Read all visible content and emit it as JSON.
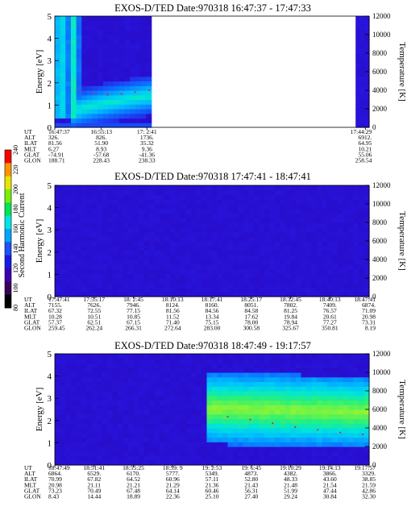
{
  "colorbar": {
    "label": "Second Harmonic Current",
    "ticks": [
      "80",
      "100",
      "120",
      "140",
      "160",
      "180",
      "200",
      "220",
      "240"
    ],
    "colors": [
      "#000000",
      "#3b005a",
      "#3c00b4",
      "#1a1ae6",
      "#1e50ff",
      "#00a5ff",
      "#00e6e6",
      "#00e650",
      "#78f000",
      "#e6e600",
      "#ff9600",
      "#ff0000"
    ]
  },
  "chart_data": [
    {
      "type": "heatmap",
      "title": "EXOS-D/TED   Date:970318   16:47:37 - 17:47:33",
      "ylabel": "Energy [eV]",
      "y2label": "Temperature [K]",
      "ylim": [
        0,
        5
      ],
      "yticks": [
        "0",
        "1",
        "2",
        "3",
        "4",
        "5"
      ],
      "y2lim": [
        0,
        12000
      ],
      "y2ticks": [
        "0",
        "2000",
        "4000",
        "6000",
        "8000",
        "10000",
        "12000"
      ],
      "data_coverage": [
        [
          0.0,
          0.307
        ],
        [
          0.957,
          1.0
        ]
      ],
      "band": {
        "energy_center_start": 0.2,
        "energy_center_end": 1.45,
        "note": "arc band rising from ~0.2 eV to ~1.5 eV"
      },
      "temperature_markers": [
        3900,
        3700,
        3500,
        3600,
        3800,
        4000
      ],
      "orbit_labels": [
        "UT",
        "ALT",
        "ILAT",
        "MLT",
        "GLAT",
        "GLON"
      ],
      "orbit_columns": [
        {
          "frac": 0.0,
          "vals": [
            "16:47:37",
            "326.",
            "81.56",
            "6.27",
            "-74.91",
            "188.71"
          ]
        },
        {
          "frac": 0.148,
          "vals": [
            "16:55:13",
            "826.",
            "51.90",
            "8.93",
            "-57.68",
            "228.43"
          ]
        },
        {
          "frac": 0.293,
          "vals": [
            "17: 2:41",
            "1736.",
            "35.32",
            "9.36",
            "-41.36",
            "238.33"
          ]
        },
        {
          "frac": 0.988,
          "vals": [
            "17:44:29",
            "6912.",
            "64.95",
            "10.21",
            "55.06",
            "258.54"
          ]
        }
      ]
    },
    {
      "type": "heatmap",
      "title": "EXOS-D/TED   Date:970318   17:47:41 - 18:47:41",
      "ylabel": "Energy [eV]",
      "y2label": "Temperature [K]",
      "ylim": [
        0,
        5
      ],
      "yticks": [
        "0",
        "1",
        "2",
        "3",
        "4",
        "5"
      ],
      "y2lim": [
        0,
        12000
      ],
      "y2ticks": [
        "0",
        "2000",
        "4000",
        "6000",
        "8000",
        "10000",
        "12000"
      ],
      "data_coverage": [
        [
          0.0,
          1.0
        ]
      ],
      "band": null,
      "temperature_markers": [],
      "orbit_labels": [
        "UT",
        "ALT",
        "ILAT",
        "MLT",
        "GLAT",
        "GLON"
      ],
      "orbit_columns": [
        {
          "frac": 0.0,
          "vals": [
            "17:47:41",
            "7155.",
            "67.32",
            "10.28",
            "57.37",
            "259.45"
          ]
        },
        {
          "frac": 0.125,
          "vals": [
            "17:55:17",
            "7626.",
            "72.55",
            "10.51",
            "62.51",
            "262.24"
          ]
        },
        {
          "frac": 0.25,
          "vals": [
            "18: 2:45",
            "7946.",
            "77.15",
            "10.85",
            "67.15",
            "266.31"
          ]
        },
        {
          "frac": 0.375,
          "vals": [
            "18:10:13",
            "8124.",
            "81.56",
            "11.52",
            "71.40",
            "272.64"
          ]
        },
        {
          "frac": 0.5,
          "vals": [
            "18:17:41",
            "8160.",
            "84.56",
            "13.34",
            "75.15",
            "283.00"
          ]
        },
        {
          "frac": 0.625,
          "vals": [
            "18:25:17",
            "8051.",
            "84.58",
            "17.62",
            "78.00",
            "300.58"
          ]
        },
        {
          "frac": 0.75,
          "vals": [
            "18:32:45",
            "7802.",
            "81.25",
            "19.84",
            "78.94",
            "325.67"
          ]
        },
        {
          "frac": 0.875,
          "vals": [
            "18:40:13",
            "7409.",
            "76.57",
            "20.61",
            "77.27",
            "350.81"
          ]
        },
        {
          "frac": 1.0,
          "vals": [
            "18:47:41",
            "6874.",
            "71.09",
            "20.98",
            "73.31",
            "8.19"
          ]
        }
      ]
    },
    {
      "type": "heatmap",
      "title": "EXOS-D/TED   Date:970318   18:47:49 - 19:17:57",
      "ylabel": "Energy [eV]",
      "y2label": "Temperature [K]",
      "ylim": [
        0,
        5
      ],
      "yticks": [
        "0",
        "1",
        "2",
        "3",
        "4",
        "5"
      ],
      "y2lim": [
        0,
        12000
      ],
      "y2ticks": [
        "0",
        "2000",
        "4000",
        "6000",
        "8000",
        "10000",
        "12000"
      ],
      "data_coverage": [
        [
          0.0,
          1.0
        ]
      ],
      "band": {
        "energy_center_start": 2.7,
        "energy_center_end": 2.4,
        "start_frac": 0.48,
        "note": "intense band near 2.4-2.7 eV from 18:59 onward"
      },
      "temperature_markers": [
        5200,
        4900,
        4500,
        4100,
        3800,
        3500,
        3300
      ],
      "orbit_labels": [
        "UT",
        "ALT",
        "ILAT",
        "MLT",
        "GLAT",
        "GLON"
      ],
      "orbit_columns": [
        {
          "frac": 0.0,
          "vals": [
            "18:47:49",
            "6864.",
            "70.99",
            "20.98",
            "73.23",
            "8.43"
          ]
        },
        {
          "frac": 0.125,
          "vals": [
            "18:51:41",
            "6529.",
            "67.82",
            "21.11",
            "70.49",
            "14.44"
          ]
        },
        {
          "frac": 0.25,
          "vals": [
            "18:55:25",
            "6170.",
            "64.52",
            "21.21",
            "67.48",
            "18.89"
          ]
        },
        {
          "frac": 0.375,
          "vals": [
            "18:59: 9",
            "5777.",
            "60.96",
            "21.29",
            "64.14",
            "22.36"
          ]
        },
        {
          "frac": 0.5,
          "vals": [
            "19: 2:53",
            "5349.",
            "57.11",
            "21.36",
            "60.46",
            "25.10"
          ]
        },
        {
          "frac": 0.625,
          "vals": [
            "19: 6:45",
            "4873.",
            "52.80",
            "21.43",
            "56.31",
            "27.40"
          ]
        },
        {
          "frac": 0.75,
          "vals": [
            "19:10:29",
            "4382.",
            "48.33",
            "21.48",
            "51.99",
            "29.24"
          ]
        },
        {
          "frac": 0.875,
          "vals": [
            "19:14:13",
            "3866.",
            "43.60",
            "21.54",
            "47.44",
            "30.84"
          ]
        },
        {
          "frac": 1.0,
          "vals": [
            "19:17:57",
            "3329.",
            "38.85",
            "21.59",
            "42.86",
            "32.30"
          ]
        }
      ]
    }
  ]
}
